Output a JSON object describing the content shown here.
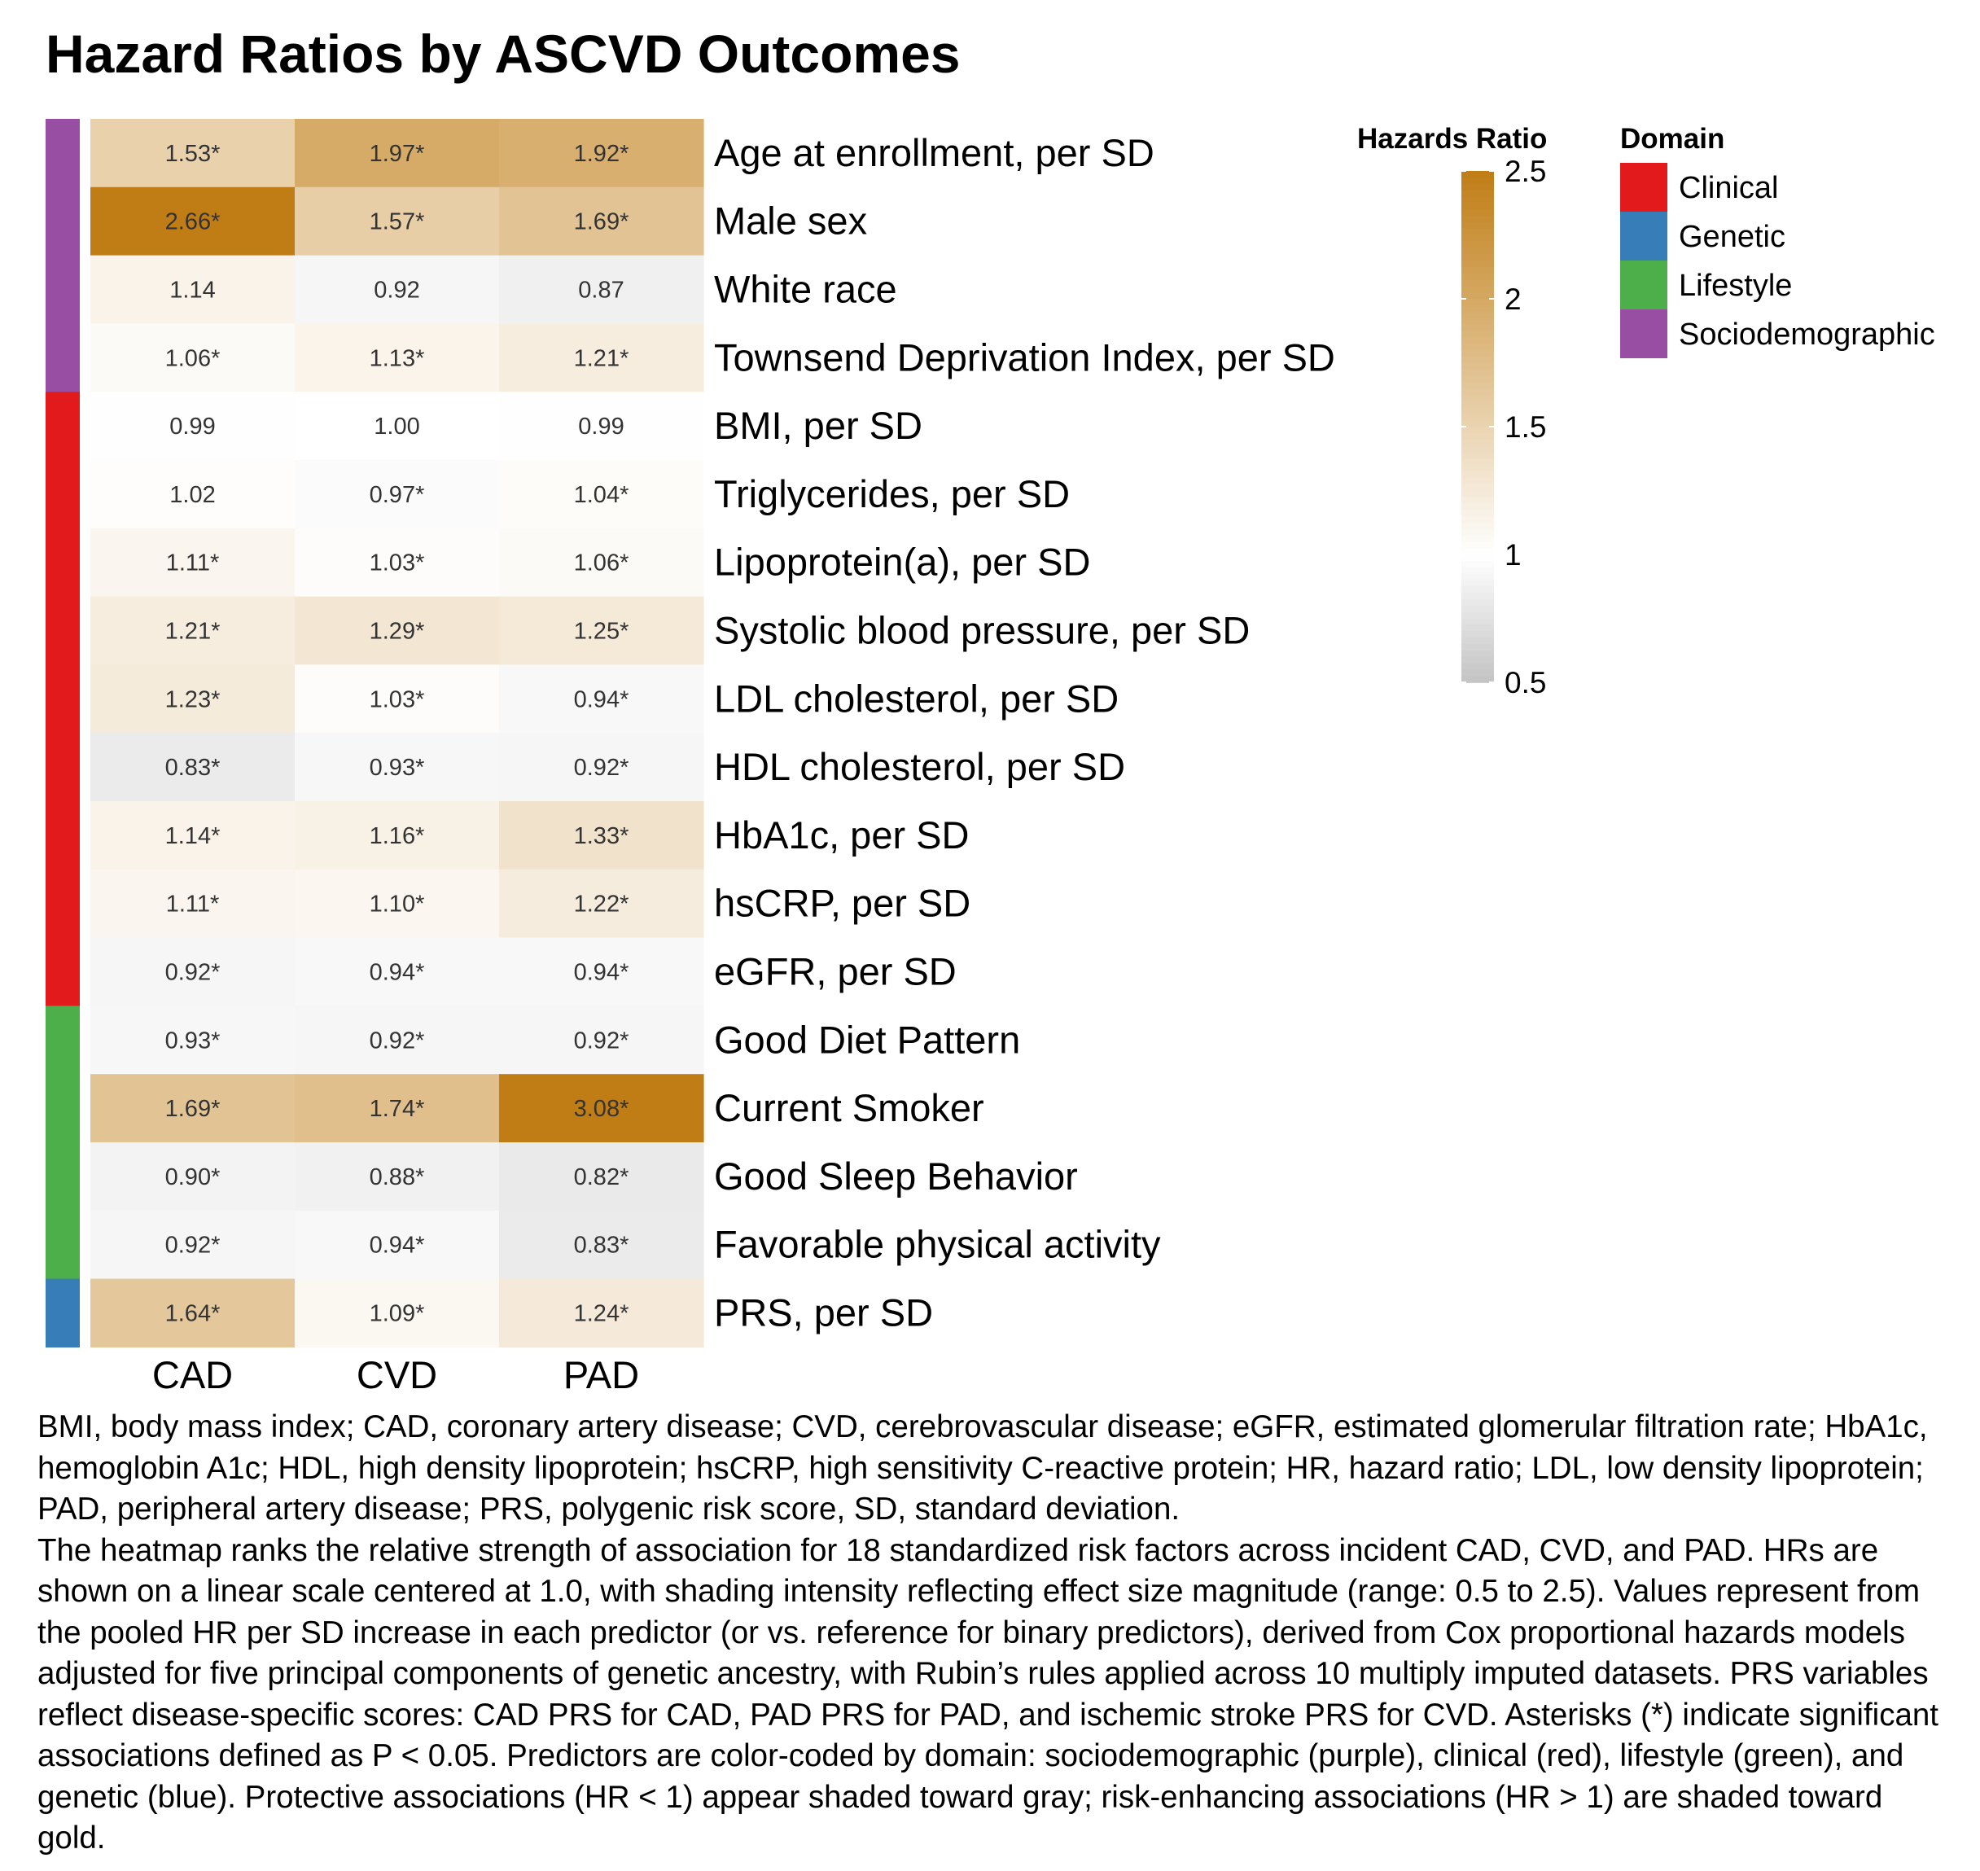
{
  "title": "Hazard Ratios by ASCVD Outcomes",
  "chart_data": {
    "type": "heatmap",
    "title": "Hazard Ratios by ASCVD Outcomes",
    "columns": [
      "CAD",
      "CVD",
      "PAD"
    ],
    "rows": [
      {
        "label": "Age at enrollment, per SD",
        "domain": "Sociodemographic",
        "values": [
          1.53,
          1.97,
          1.92
        ],
        "labels": [
          "1.53*",
          "1.97*",
          "1.92*"
        ]
      },
      {
        "label": "Male sex",
        "domain": "Sociodemographic",
        "values": [
          2.66,
          1.57,
          1.69
        ],
        "labels": [
          "2.66*",
          "1.57*",
          "1.69*"
        ]
      },
      {
        "label": "White race",
        "domain": "Sociodemographic",
        "values": [
          1.14,
          0.92,
          0.87
        ],
        "labels": [
          "1.14",
          "0.92",
          "0.87"
        ]
      },
      {
        "label": "Townsend Deprivation Index, per SD",
        "domain": "Sociodemographic",
        "values": [
          1.06,
          1.13,
          1.21
        ],
        "labels": [
          "1.06*",
          "1.13*",
          "1.21*"
        ]
      },
      {
        "label": "BMI, per SD",
        "domain": "Clinical",
        "values": [
          0.99,
          1.0,
          0.99
        ],
        "labels": [
          "0.99",
          "1.00",
          "0.99"
        ]
      },
      {
        "label": "Triglycerides, per SD",
        "domain": "Clinical",
        "values": [
          1.02,
          0.97,
          1.04
        ],
        "labels": [
          "1.02",
          "0.97*",
          "1.04*"
        ]
      },
      {
        "label": "Lipoprotein(a), per SD",
        "domain": "Clinical",
        "values": [
          1.11,
          1.03,
          1.06
        ],
        "labels": [
          "1.11*",
          "1.03*",
          "1.06*"
        ]
      },
      {
        "label": "Systolic blood pressure, per SD",
        "domain": "Clinical",
        "values": [
          1.21,
          1.29,
          1.25
        ],
        "labels": [
          "1.21*",
          "1.29*",
          "1.25*"
        ]
      },
      {
        "label": "LDL cholesterol, per SD",
        "domain": "Clinical",
        "values": [
          1.23,
          1.03,
          0.94
        ],
        "labels": [
          "1.23*",
          "1.03*",
          "0.94*"
        ]
      },
      {
        "label": "HDL cholesterol, per SD",
        "domain": "Clinical",
        "values": [
          0.83,
          0.93,
          0.92
        ],
        "labels": [
          "0.83*",
          "0.93*",
          "0.92*"
        ]
      },
      {
        "label": "HbA1c, per SD",
        "domain": "Clinical",
        "values": [
          1.14,
          1.16,
          1.33
        ],
        "labels": [
          "1.14*",
          "1.16*",
          "1.33*"
        ]
      },
      {
        "label": "hsCRP, per SD",
        "domain": "Clinical",
        "values": [
          1.11,
          1.1,
          1.22
        ],
        "labels": [
          "1.11*",
          "1.10*",
          "1.22*"
        ]
      },
      {
        "label": "eGFR, per SD",
        "domain": "Clinical",
        "values": [
          0.92,
          0.94,
          0.94
        ],
        "labels": [
          "0.92*",
          "0.94*",
          "0.94*"
        ]
      },
      {
        "label": "Good Diet Pattern",
        "domain": "Lifestyle",
        "values": [
          0.93,
          0.92,
          0.92
        ],
        "labels": [
          "0.93*",
          "0.92*",
          "0.92*"
        ]
      },
      {
        "label": "Current Smoker",
        "domain": "Lifestyle",
        "values": [
          1.69,
          1.74,
          3.08
        ],
        "labels": [
          "1.69*",
          "1.74*",
          "3.08*"
        ]
      },
      {
        "label": "Good Sleep Behavior",
        "domain": "Lifestyle",
        "values": [
          0.9,
          0.88,
          0.82
        ],
        "labels": [
          "0.90*",
          "0.88*",
          "0.82*"
        ]
      },
      {
        "label": "Favorable physical activity",
        "domain": "Lifestyle",
        "values": [
          0.92,
          0.94,
          0.83
        ],
        "labels": [
          "0.92*",
          "0.94*",
          "0.83*"
        ]
      },
      {
        "label": "PRS, per SD",
        "domain": "Genetic",
        "values": [
          1.64,
          1.09,
          1.24
        ],
        "labels": [
          "1.64*",
          "1.09*",
          "1.24*"
        ]
      }
    ],
    "color_scale": {
      "title": "Hazards Ratio",
      "min": 0.5,
      "mid": 1,
      "max": 2.5,
      "low_color": "#c4c4c4",
      "mid_color": "#ffffff",
      "high_color": "#c07d15",
      "ticks": [
        2.5,
        2,
        1.5,
        1,
        0.5
      ],
      "tick_labels": [
        "2.5",
        "2",
        "1.5",
        "1",
        "0.5"
      ]
    },
    "domain_legend": {
      "title": "Domain",
      "items": [
        {
          "name": "Clinical",
          "color": "#e31a1c"
        },
        {
          "name": "Genetic",
          "color": "#377eb8"
        },
        {
          "name": "Lifestyle",
          "color": "#4daf4a"
        },
        {
          "name": "Sociodemographic",
          "color": "#984ea3"
        }
      ]
    }
  },
  "caption": [
    "BMI, body mass index; CAD, coronary artery disease; CVD, cerebrovascular disease; eGFR, estimated glomerular filtration rate; HbA1c, hemoglobin A1c; HDL, high density lipoprotein; hsCRP, high sensitivity C-reactive protein; HR, hazard ratio; LDL, low density lipoprotein; PAD, peripheral artery disease; PRS, polygenic risk score, SD, standard deviation.",
    "The heatmap ranks the relative strength of association for 18 standardized risk factors across incident CAD, CVD, and PAD. HRs are shown on a linear scale centered at 1.0, with shading intensity reflecting effect size magnitude (range: 0.5 to 2.5). Values represent from the pooled HR per SD increase in each predictor (or vs. reference for binary predictors), derived from Cox proportional hazards models adjusted for five principal components of genetic ancestry, with Rubin’s rules applied across 10 multiply imputed datasets. PRS variables reflect disease-specific scores: CAD PRS for CAD, PAD PRS for PAD, and ischemic stroke PRS for CVD. Asterisks (*) indicate significant associations defined as P < 0.05. Predictors are color-coded by domain: sociodemographic (purple), clinical (red), lifestyle (green), and genetic (blue). Protective associations (HR < 1) appear shaded toward gray; risk-enhancing associations (HR > 1) are shaded toward gold."
  ]
}
